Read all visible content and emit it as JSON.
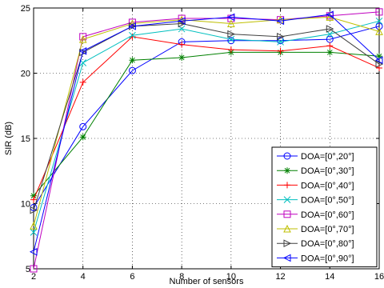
{
  "chart_data": {
    "type": "line",
    "title": "",
    "xlabel": "Number of sensors",
    "ylabel": "SIR (dB)",
    "xlim": [
      2,
      16
    ],
    "ylim": [
      5,
      25
    ],
    "x_ticks": [
      2,
      4,
      6,
      8,
      10,
      12,
      14,
      16
    ],
    "y_ticks": [
      5,
      10,
      15,
      20,
      25
    ],
    "x_tick_labels": [
      "2",
      "4",
      "6",
      "8",
      "10",
      "12",
      "14",
      "16"
    ],
    "y_tick_labels": [
      "5",
      "10",
      "15",
      "20",
      "25"
    ],
    "grid": true,
    "grid_style": "dotted",
    "legend_position": "bottom-right",
    "x": [
      2,
      4,
      6,
      8,
      10,
      12,
      14,
      16
    ],
    "series": [
      {
        "name": "DOA=[0°,20°]",
        "color": "#0000ff",
        "marker": "circle",
        "values": [
          9.7,
          15.9,
          20.2,
          22.4,
          22.5,
          22.5,
          22.6,
          23.6
        ]
      },
      {
        "name": "DOA=[0°,30°]",
        "color": "#008000",
        "marker": "star",
        "values": [
          10.6,
          15.1,
          21.0,
          21.2,
          21.6,
          21.6,
          21.6,
          21.3
        ]
      },
      {
        "name": "DOA=[0°,40°]",
        "color": "#ff0000",
        "marker": "plus",
        "values": [
          10.3,
          19.3,
          22.8,
          22.2,
          21.8,
          21.7,
          22.1,
          20.4
        ]
      },
      {
        "name": "DOA=[0°,50°]",
        "color": "#00bfbf",
        "marker": "x",
        "values": [
          7.8,
          20.8,
          22.9,
          23.4,
          22.6,
          22.4,
          23.0,
          24.0
        ]
      },
      {
        "name": "DOA=[0°,60°]",
        "color": "#bf00bf",
        "marker": "square",
        "values": [
          5.0,
          22.8,
          23.9,
          24.2,
          24.2,
          24.1,
          24.4,
          24.7
        ]
      },
      {
        "name": "DOA=[0°,70°]",
        "color": "#bfbf00",
        "marker": "triangle-up",
        "values": [
          8.3,
          22.6,
          23.8,
          24.1,
          23.8,
          24.1,
          24.3,
          23.2
        ]
      },
      {
        "name": "DOA=[0°,80°]",
        "color": "#404040",
        "marker": "triangle-right",
        "values": [
          9.5,
          21.6,
          23.6,
          23.8,
          23.0,
          22.8,
          23.4,
          20.7
        ]
      },
      {
        "name": "DOA=[0°,90°]",
        "color": "#0000ff",
        "marker": "triangle-left",
        "values": [
          6.3,
          21.7,
          23.6,
          24.0,
          24.3,
          24.0,
          24.5,
          21.0
        ]
      }
    ]
  }
}
